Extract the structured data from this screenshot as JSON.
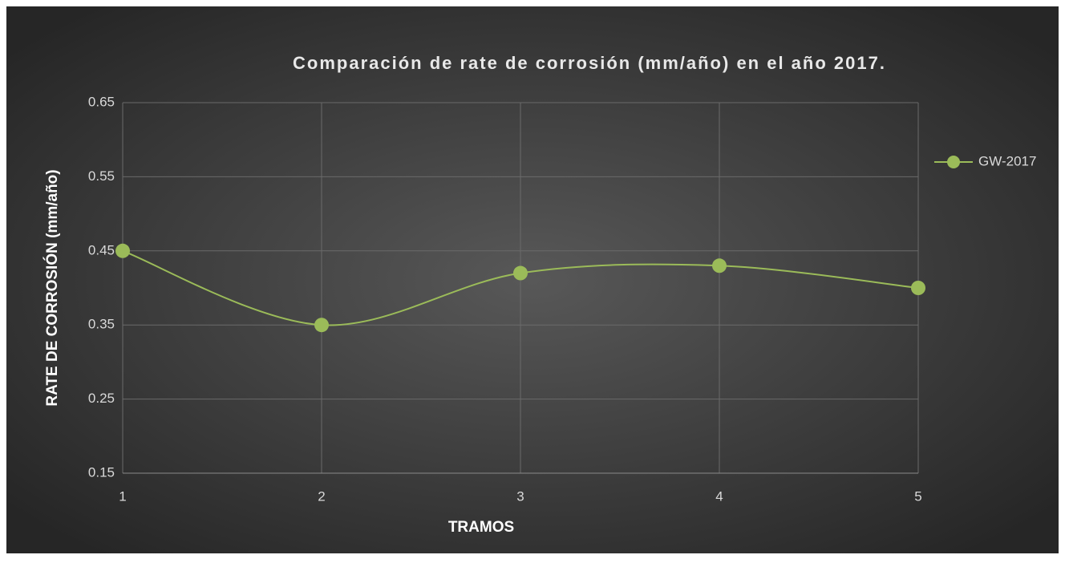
{
  "chart_data": {
    "type": "line",
    "title": "Comparación de rate de corrosión (mm/año) en el año 2017.",
    "x_label": "TRAMOS",
    "y_label": "RATE DE CORROSIÓN (mm/año)",
    "x": [
      1,
      2,
      3,
      4,
      5
    ],
    "series": [
      {
        "name": "GW-2017",
        "color": "#9bbb59",
        "values": [
          0.45,
          0.35,
          0.42,
          0.43,
          0.4
        ]
      }
    ],
    "xlim": [
      1,
      5
    ],
    "xticks": [
      1,
      2,
      3,
      4,
      5
    ],
    "ylim": [
      0.15,
      0.65
    ],
    "yticks": [
      0.15,
      0.25,
      0.35,
      0.45,
      0.55,
      0.65
    ],
    "grid": true,
    "smooth": true,
    "legend": "right"
  }
}
